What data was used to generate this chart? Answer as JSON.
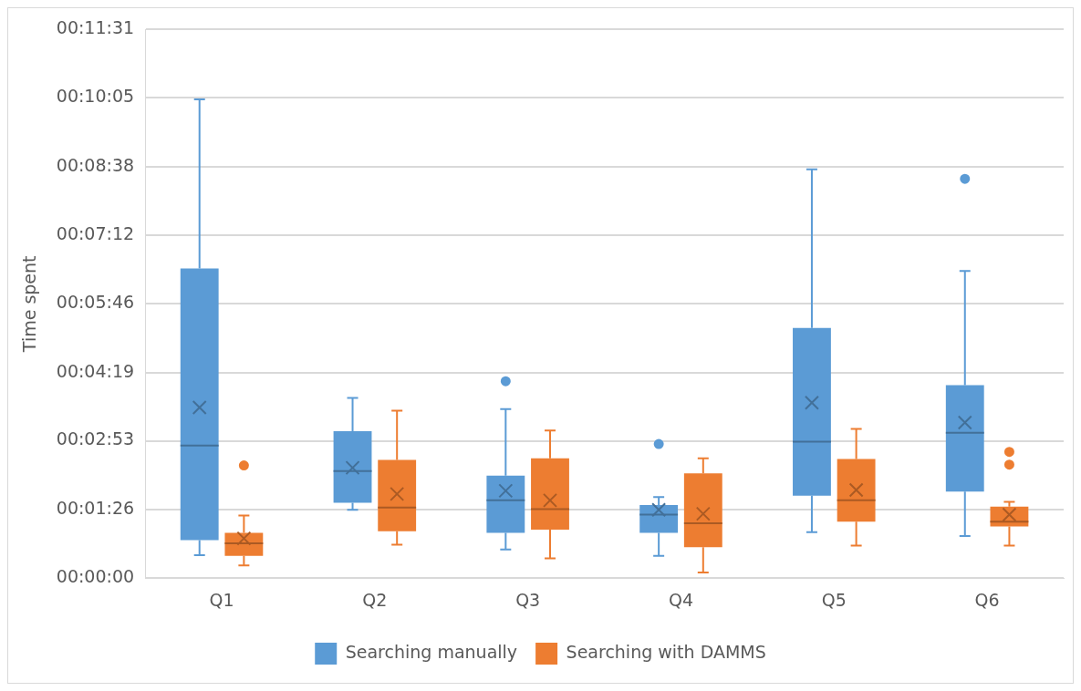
{
  "chart_data": {
    "type": "box",
    "ylabel": "Time spent",
    "categories": [
      "Q1",
      "Q2",
      "Q3",
      "Q4",
      "Q5",
      "Q6"
    ],
    "ylim": [
      0,
      691
    ],
    "yticks": [
      {
        "value": 0,
        "label": "00:00:00"
      },
      {
        "value": 86,
        "label": "00:01:26"
      },
      {
        "value": 173,
        "label": "00:02:53"
      },
      {
        "value": 259,
        "label": "00:04:19"
      },
      {
        "value": 346,
        "label": "00:05:46"
      },
      {
        "value": 432,
        "label": "00:07:12"
      },
      {
        "value": 518,
        "label": "00:08:38"
      },
      {
        "value": 605,
        "label": "00:10:05"
      },
      {
        "value": 691,
        "label": "00:11:31"
      }
    ],
    "grid": "y",
    "legend": "bottom",
    "series": [
      {
        "name": "Searching manually",
        "color": "#5b9bd5",
        "boxes": [
          {
            "low": 29,
            "q1": 48,
            "median": 167,
            "q3": 390,
            "high": 603,
            "mean": 215
          },
          {
            "low": 86,
            "q1": 95,
            "median": 135,
            "q3": 185,
            "high": 227,
            "mean": 139
          },
          {
            "low": 36,
            "q1": 57,
            "median": 98,
            "q3": 129,
            "high": 213,
            "mean": 110,
            "outliers": [
              248
            ]
          },
          {
            "low": 28,
            "q1": 57,
            "median": 80,
            "q3": 92,
            "high": 102,
            "mean": 86,
            "outliers": [
              169
            ]
          },
          {
            "low": 58,
            "q1": 104,
            "median": 172,
            "q3": 315,
            "high": 515,
            "mean": 221
          },
          {
            "low": 53,
            "q1": 109,
            "median": 183,
            "q3": 243,
            "high": 387,
            "mean": 196,
            "outliers": [
              503
            ]
          }
        ]
      },
      {
        "name": "Searching with DAMMS",
        "color": "#ed7d31",
        "boxes": [
          {
            "low": 16,
            "q1": 28,
            "median": 44,
            "q3": 57,
            "high": 79,
            "mean": 50,
            "outliers": [
              142
            ]
          },
          {
            "low": 42,
            "q1": 59,
            "median": 89,
            "q3": 149,
            "high": 211,
            "mean": 106
          },
          {
            "low": 25,
            "q1": 61,
            "median": 87,
            "q3": 151,
            "high": 186,
            "mean": 98
          },
          {
            "low": 7,
            "q1": 39,
            "median": 69,
            "q3": 132,
            "high": 151,
            "mean": 81
          },
          {
            "low": 41,
            "q1": 71,
            "median": 98,
            "q3": 150,
            "high": 188,
            "mean": 111
          },
          {
            "low": 41,
            "q1": 65,
            "median": 71,
            "q3": 90,
            "high": 96,
            "mean": 80,
            "outliers": [
              159,
              143
            ]
          }
        ]
      }
    ]
  }
}
